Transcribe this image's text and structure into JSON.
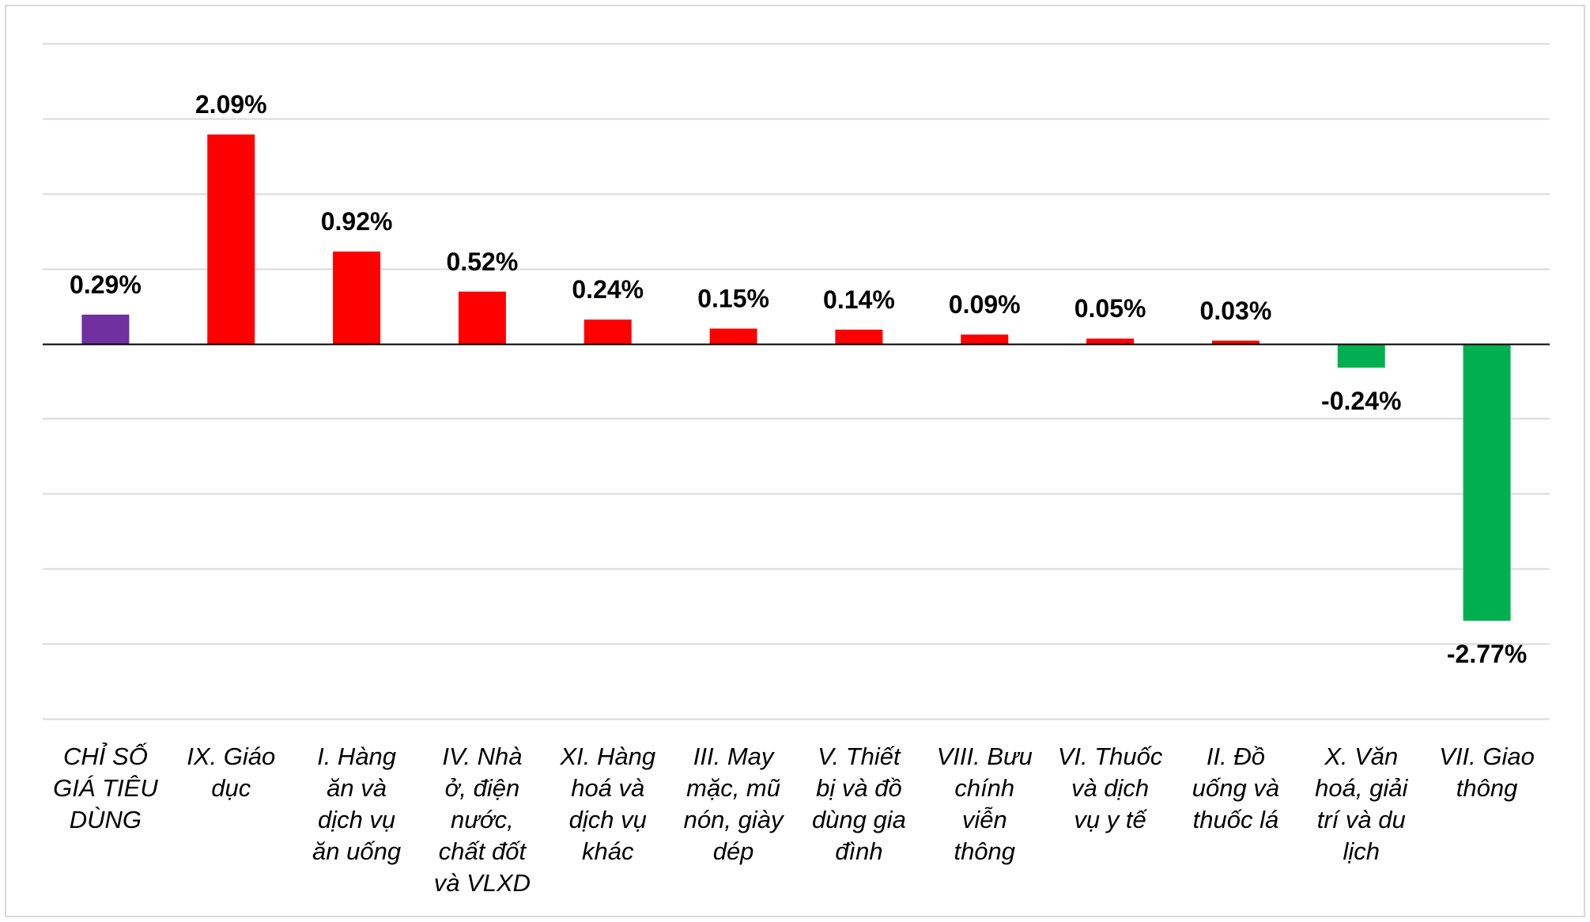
{
  "chart_data": {
    "type": "bar",
    "title": "",
    "xlabel": "",
    "ylabel": "",
    "ylim": [
      -3.75,
      3.0
    ],
    "grid": true,
    "legend": "none",
    "colors": {
      "total": "#7030A0",
      "positive": "#FF0000",
      "negative": "#00B050",
      "gridline": "#d9d9d9",
      "axis": "#000000"
    },
    "categories": [
      "CHỈ SỐ GIÁ TIÊU DÙNG",
      "IX. Giáo dục",
      "I. Hàng ăn và dịch vụ ăn uống",
      "IV. Nhà ở, điện nước, chất đốt và VLXD",
      "XI. Hàng hoá và dịch vụ khác",
      "III. May mặc, mũ nón, giày dép",
      "V. Thiết bị và đồ dùng gia đình",
      "VIII. Bưu chính viễn thông",
      "VI. Thuốc và dịch vụ y tế",
      "II. Đồ uống và thuốc lá",
      "X. Văn hoá, giải trí và du lịch",
      "VII. Giao thông"
    ],
    "category_lines": [
      [
        "CHỈ SỐ",
        "GIÁ TIÊU",
        "DÙNG"
      ],
      [
        "IX. Giáo",
        "dục"
      ],
      [
        "I. Hàng",
        "ăn và",
        "dịch vụ",
        "ăn uống"
      ],
      [
        "IV. Nhà",
        "ở, điện",
        "nước,",
        "chất đốt",
        "và VLXD"
      ],
      [
        "XI. Hàng",
        "hoá và",
        "dịch vụ",
        "khác"
      ],
      [
        "III. May",
        "mặc, mũ",
        "nón, giày",
        "dép"
      ],
      [
        "V. Thiết",
        "bị và đồ",
        "dùng gia",
        "đình"
      ],
      [
        "VIII. Bưu",
        "chính",
        "viễn",
        "thông"
      ],
      [
        "VI. Thuốc",
        "và dịch",
        "vụ y tế"
      ],
      [
        "II. Đồ",
        "uống và",
        "thuốc lá"
      ],
      [
        "X. Văn",
        "hoá, giải",
        "trí và du",
        "lịch"
      ],
      [
        "VII. Giao",
        "thông"
      ]
    ],
    "values": [
      0.29,
      2.09,
      0.92,
      0.52,
      0.24,
      0.15,
      0.14,
      0.09,
      0.05,
      0.03,
      -0.24,
      -2.77
    ],
    "data_labels": [
      "0.29%",
      "2.09%",
      "0.92%",
      "0.52%",
      "0.24%",
      "0.15%",
      "0.14%",
      "0.09%",
      "0.05%",
      "0.03%",
      "-0.24%",
      "-2.77%"
    ]
  }
}
